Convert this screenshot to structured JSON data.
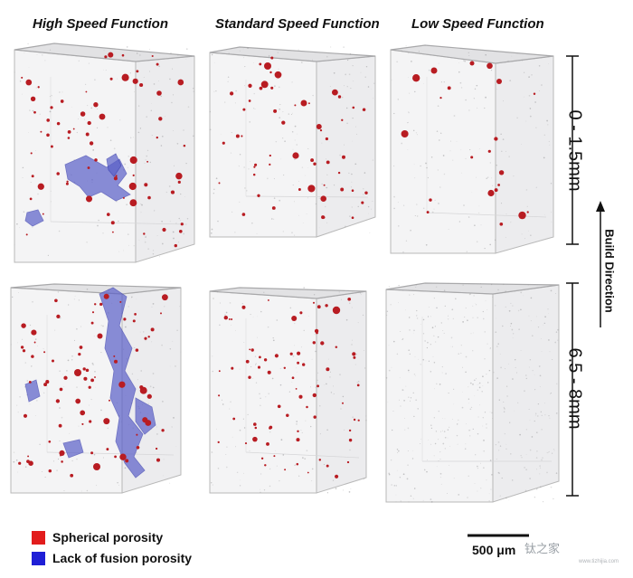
{
  "columns": [
    {
      "title": "High Speed Function"
    },
    {
      "title": "Standard Speed Function"
    },
    {
      "title": "Low Speed Function"
    }
  ],
  "rows": [
    {
      "label": "0 - 1.5mm"
    },
    {
      "label": "6.5 - 8mm"
    }
  ],
  "axis": {
    "label": "Build Direction"
  },
  "legend": [
    {
      "label": "Spherical porosity",
      "color": "#e21c1c"
    },
    {
      "label": "Lack of fusion porosity",
      "color": "#1f1fd6"
    }
  ],
  "scale_bar": {
    "label": "500 μm"
  },
  "watermark": {
    "text": "钛之家",
    "sub": "www.tizhijia.com"
  },
  "colors": {
    "spherical": "#b81c22",
    "lack_of_fusion": "#5a5fc8",
    "block_edge": "#b8b8b8"
  }
}
